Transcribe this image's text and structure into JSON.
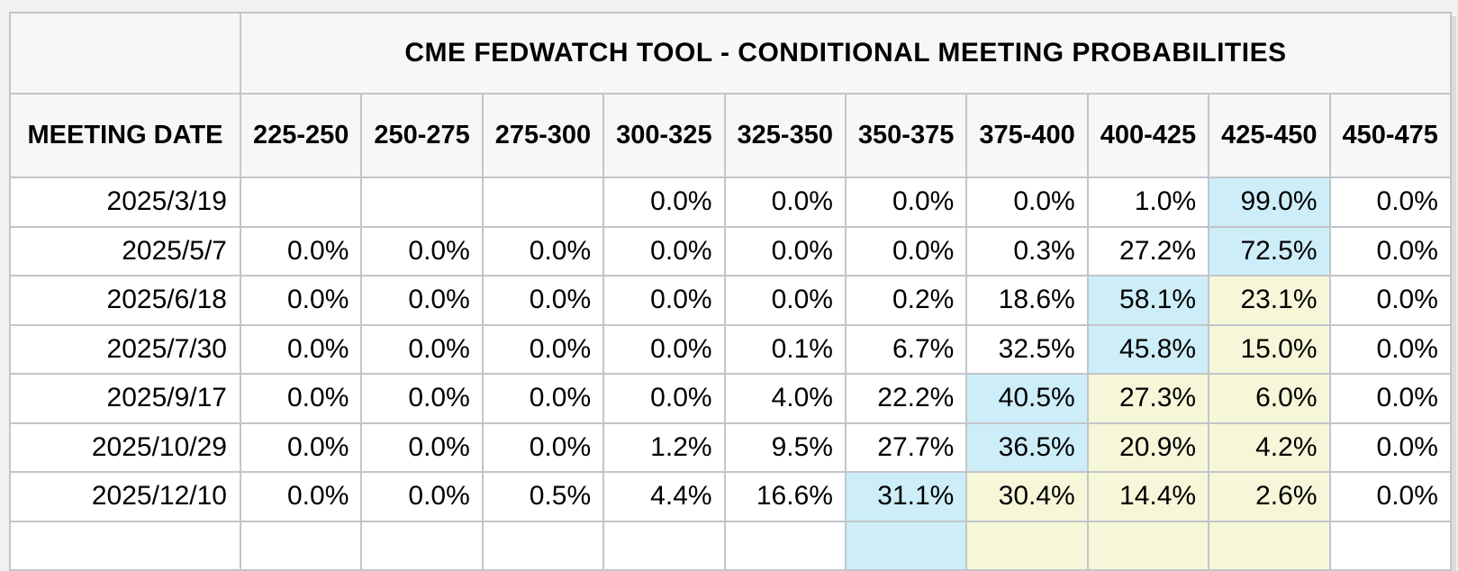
{
  "chart_data": {
    "type": "table",
    "title": "CME FEDWATCH TOOL - CONDITIONAL MEETING PROBABILITIES",
    "row_label_header": "MEETING DATE",
    "columns": [
      "MEETING DATE",
      "225-250",
      "250-275",
      "275-300",
      "300-325",
      "325-350",
      "350-375",
      "375-400",
      "400-425",
      "425-450",
      "450-475"
    ],
    "rows": [
      {
        "date": "2025/3/19",
        "values": [
          "",
          "",
          "",
          "0.0%",
          "0.0%",
          "0.0%",
          "0.0%",
          "1.0%",
          "99.0%",
          "0.0%"
        ],
        "highlights": [
          "",
          "",
          "",
          "",
          "",
          "",
          "",
          "",
          "blue",
          ""
        ]
      },
      {
        "date": "2025/5/7",
        "values": [
          "0.0%",
          "0.0%",
          "0.0%",
          "0.0%",
          "0.0%",
          "0.0%",
          "0.3%",
          "27.2%",
          "72.5%",
          "0.0%"
        ],
        "highlights": [
          "",
          "",
          "",
          "",
          "",
          "",
          "",
          "",
          "blue",
          ""
        ]
      },
      {
        "date": "2025/6/18",
        "values": [
          "0.0%",
          "0.0%",
          "0.0%",
          "0.0%",
          "0.0%",
          "0.2%",
          "18.6%",
          "58.1%",
          "23.1%",
          "0.0%"
        ],
        "highlights": [
          "",
          "",
          "",
          "",
          "",
          "",
          "",
          "blue",
          "yellow",
          ""
        ]
      },
      {
        "date": "2025/7/30",
        "values": [
          "0.0%",
          "0.0%",
          "0.0%",
          "0.0%",
          "0.1%",
          "6.7%",
          "32.5%",
          "45.8%",
          "15.0%",
          "0.0%"
        ],
        "highlights": [
          "",
          "",
          "",
          "",
          "",
          "",
          "",
          "blue",
          "yellow",
          ""
        ]
      },
      {
        "date": "2025/9/17",
        "values": [
          "0.0%",
          "0.0%",
          "0.0%",
          "0.0%",
          "4.0%",
          "22.2%",
          "40.5%",
          "27.3%",
          "6.0%",
          "0.0%"
        ],
        "highlights": [
          "",
          "",
          "",
          "",
          "",
          "",
          "blue",
          "yellow",
          "yellow",
          ""
        ]
      },
      {
        "date": "2025/10/29",
        "values": [
          "0.0%",
          "0.0%",
          "0.0%",
          "1.2%",
          "9.5%",
          "27.7%",
          "36.5%",
          "20.9%",
          "4.2%",
          "0.0%"
        ],
        "highlights": [
          "",
          "",
          "",
          "",
          "",
          "",
          "blue",
          "yellow",
          "yellow",
          ""
        ]
      },
      {
        "date": "2025/12/10",
        "values": [
          "0.0%",
          "0.0%",
          "0.5%",
          "4.4%",
          "16.6%",
          "31.1%",
          "30.4%",
          "14.4%",
          "2.6%",
          "0.0%"
        ],
        "highlights": [
          "",
          "",
          "",
          "",
          "",
          "blue",
          "yellow",
          "yellow",
          "yellow",
          ""
        ]
      }
    ],
    "partial_next_row": {
      "date": "",
      "values": [
        "",
        "",
        "",
        "",
        "",
        "",
        "",
        "",
        "",
        ""
      ],
      "highlights": [
        "",
        "",
        "",
        "",
        "",
        "blue",
        "yellow",
        "yellow",
        "yellow",
        ""
      ]
    }
  },
  "colors": {
    "highlight_blue": "#cdeef8",
    "highlight_yellow": "#f6f7d8",
    "header_background": "#f7f7f7",
    "page_background": "#f1f1f3",
    "border": "#c2c5ca"
  }
}
